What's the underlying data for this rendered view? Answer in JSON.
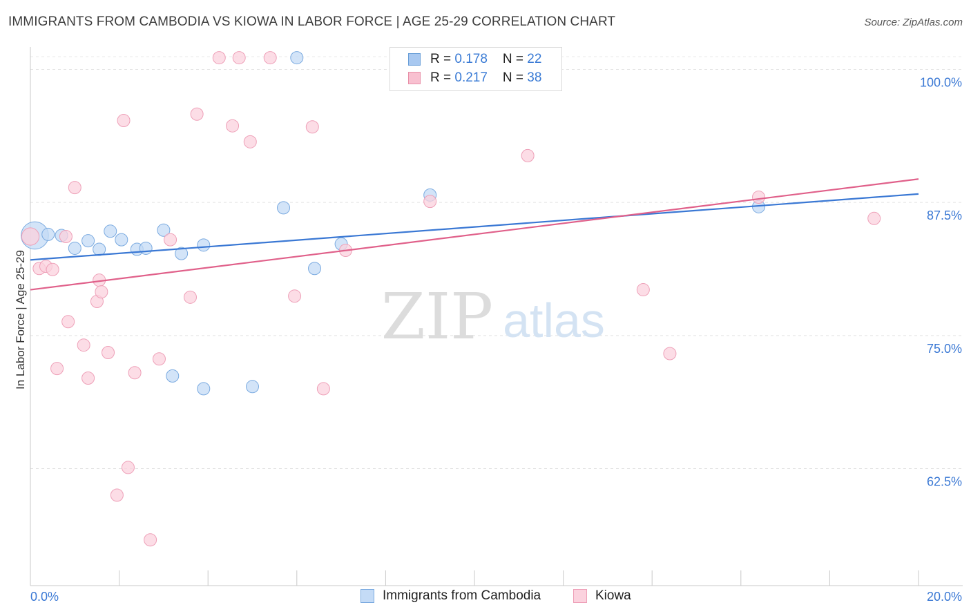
{
  "title": "IMMIGRANTS FROM CAMBODIA VS KIOWA IN LABOR FORCE | AGE 25-29 CORRELATION CHART",
  "source": "Source: ZipAtlas.com",
  "watermark": {
    "zip": "ZIP",
    "atlas": "atlas"
  },
  "stats": [
    {
      "r_label": "R = ",
      "r_value": "0.178",
      "n_label": "N = ",
      "n_value": "22",
      "color": "#a8c8f0",
      "border": "#6a9fd8"
    },
    {
      "r_label": "R = ",
      "r_value": "0.217",
      "n_label": "N = ",
      "n_value": "38",
      "color": "#f8c0d0",
      "border": "#e890a8"
    }
  ],
  "legend": [
    {
      "label": "Immigrants from Cambodia",
      "color": "#c4dbf6",
      "border": "#7aaae0"
    },
    {
      "label": "Kiowa",
      "color": "#fbd2de",
      "border": "#eea0b8"
    }
  ],
  "chart_data": {
    "type": "scatter",
    "title": "IMMIGRANTS FROM CAMBODIA VS KIOWA IN LABOR FORCE | AGE 25-29 CORRELATION CHART",
    "xlabel": "",
    "ylabel": "In Labor Force | Age 25-29",
    "xlim": [
      0,
      20
    ],
    "ylim": [
      51.5,
      102.5
    ],
    "x_tick_labels": [
      {
        "value": 0,
        "label": "0.0%"
      },
      {
        "value": 20,
        "label": "20.0%"
      }
    ],
    "y_ticks": [
      {
        "value": 100.0,
        "label": "100.0%"
      },
      {
        "value": 87.5,
        "label": "87.5%"
      },
      {
        "value": 75.0,
        "label": "75.0%"
      },
      {
        "value": 62.5,
        "label": "62.5%"
      }
    ],
    "series": [
      {
        "name": "Immigrants from Cambodia",
        "color": "#3a78d4",
        "fill": "#c4dbf6",
        "stroke": "#7aaae0",
        "trend": {
          "x": [
            0,
            20
          ],
          "y": [
            82.1,
            88.3
          ]
        },
        "points": [
          [
            0.1,
            84.4,
            2.2
          ],
          [
            0.4,
            84.5,
            1
          ],
          [
            0.7,
            84.4,
            1
          ],
          [
            1.0,
            83.2,
            1
          ],
          [
            1.3,
            83.9,
            1
          ],
          [
            1.55,
            83.1,
            1
          ],
          [
            1.8,
            84.8,
            1
          ],
          [
            2.05,
            84.0,
            1
          ],
          [
            2.4,
            83.1,
            1
          ],
          [
            2.6,
            83.2,
            1
          ],
          [
            3.0,
            84.9,
            1
          ],
          [
            3.4,
            82.7,
            1
          ],
          [
            3.9,
            83.5,
            1
          ],
          [
            3.2,
            71.2,
            1
          ],
          [
            3.9,
            70.0,
            1
          ],
          [
            5.0,
            70.2,
            1
          ],
          [
            5.7,
            87.0,
            1
          ],
          [
            6.0,
            101.1,
            1
          ],
          [
            6.4,
            81.3,
            1
          ],
          [
            7.0,
            83.6,
            1
          ],
          [
            9.0,
            88.2,
            1
          ],
          [
            16.4,
            87.1,
            1
          ]
        ]
      },
      {
        "name": "Kiowa",
        "color": "#e0608a",
        "fill": "#fbd2de",
        "stroke": "#eea0b8",
        "trend": {
          "x": [
            0,
            20
          ],
          "y": [
            79.3,
            89.7
          ]
        },
        "points": [
          [
            0.0,
            84.3,
            1.4
          ],
          [
            0.2,
            81.3,
            1
          ],
          [
            0.35,
            81.5,
            1
          ],
          [
            0.5,
            81.2,
            1
          ],
          [
            0.6,
            71.9,
            1
          ],
          [
            0.8,
            84.3,
            1
          ],
          [
            0.85,
            76.3,
            1
          ],
          [
            1.0,
            88.9,
            1
          ],
          [
            1.2,
            74.1,
            1
          ],
          [
            1.3,
            71.0,
            1
          ],
          [
            1.5,
            78.2,
            1
          ],
          [
            1.55,
            80.2,
            1
          ],
          [
            1.6,
            79.1,
            1
          ],
          [
            1.75,
            73.4,
            1
          ],
          [
            1.95,
            60.0,
            1
          ],
          [
            2.1,
            95.2,
            1
          ],
          [
            2.2,
            62.6,
            1
          ],
          [
            2.35,
            71.5,
            1
          ],
          [
            2.7,
            55.8,
            1
          ],
          [
            2.9,
            72.8,
            1
          ],
          [
            3.15,
            84.0,
            1
          ],
          [
            3.6,
            78.6,
            1
          ],
          [
            3.75,
            95.8,
            1
          ],
          [
            4.25,
            101.1,
            1
          ],
          [
            4.55,
            94.7,
            1
          ],
          [
            4.7,
            101.1,
            1
          ],
          [
            4.95,
            93.2,
            1
          ],
          [
            5.4,
            101.1,
            1
          ],
          [
            5.95,
            78.7,
            1
          ],
          [
            6.35,
            94.6,
            1
          ],
          [
            6.6,
            70.0,
            1
          ],
          [
            7.1,
            83.0,
            1
          ],
          [
            9.0,
            87.6,
            1
          ],
          [
            11.2,
            91.9,
            1
          ],
          [
            13.8,
            79.3,
            1
          ],
          [
            14.4,
            73.3,
            1
          ],
          [
            16.4,
            88.0,
            1
          ],
          [
            19.0,
            86.0,
            1
          ]
        ]
      }
    ]
  }
}
